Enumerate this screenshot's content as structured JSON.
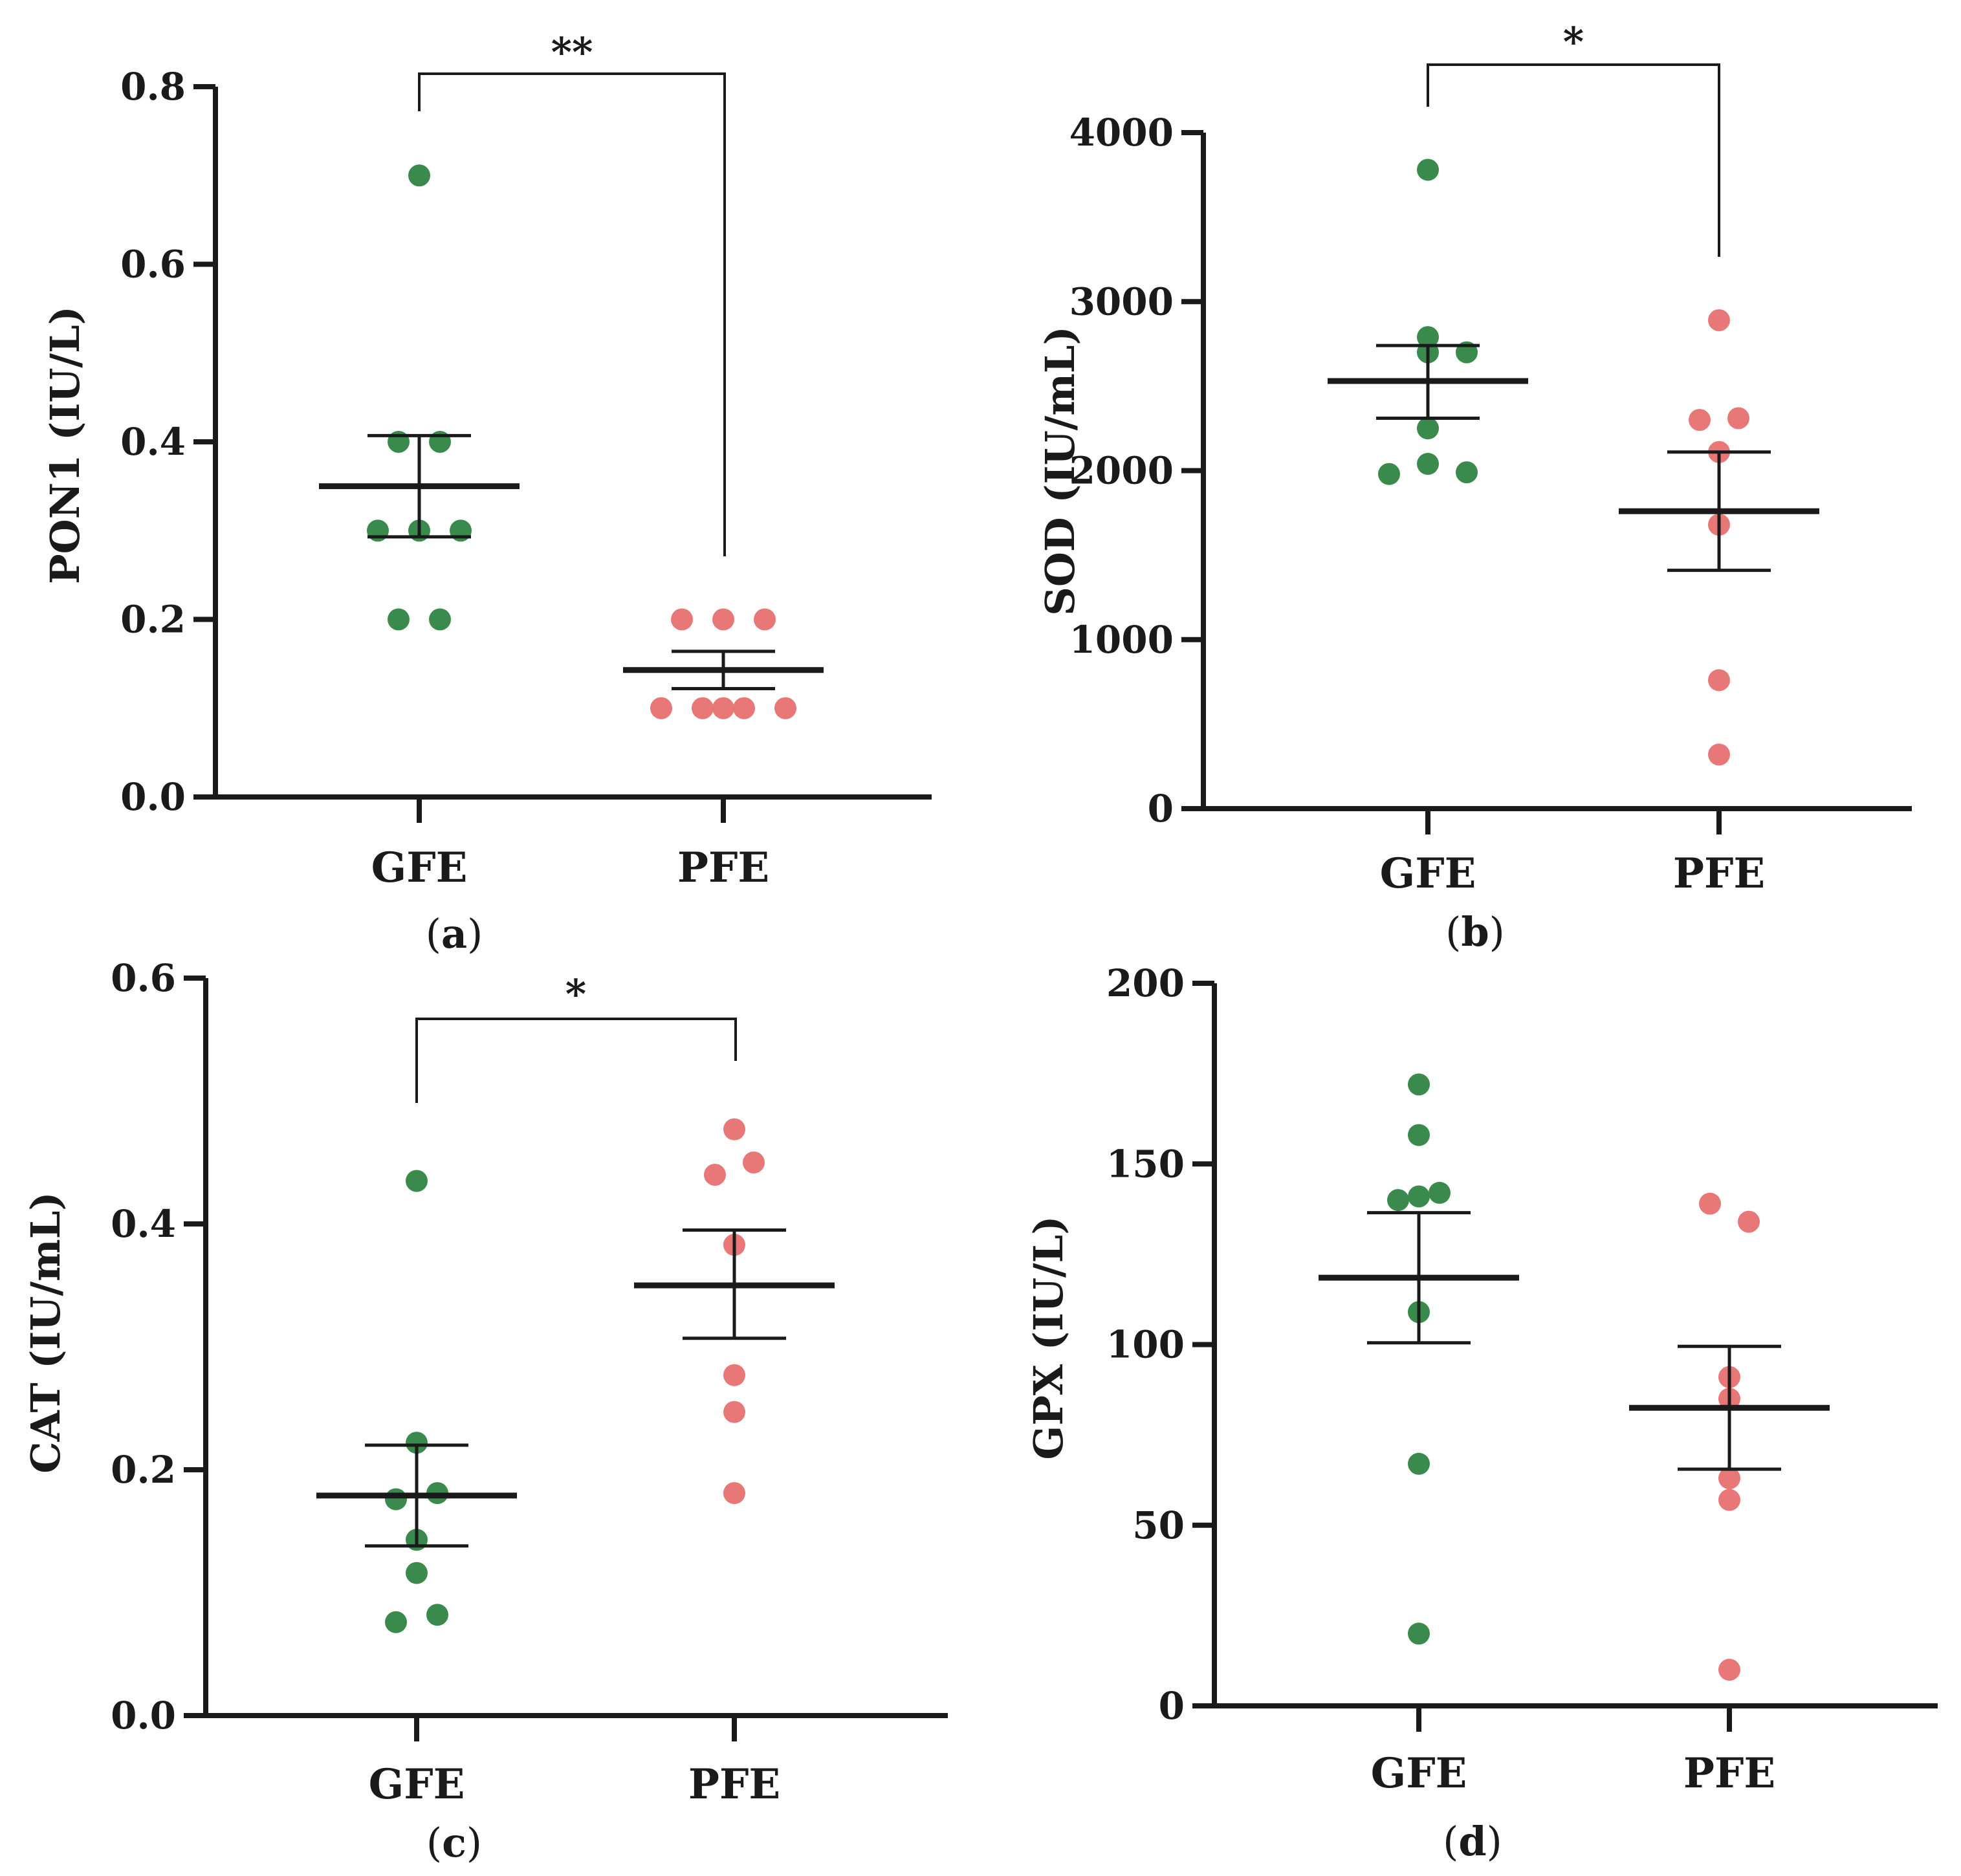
{
  "colors": {
    "GFE": "#3b8a4d",
    "PFE": "#e87878",
    "axis": "#1a1a1a"
  },
  "chart_data": [
    {
      "type": "scatter",
      "panel_label": "a",
      "ylabel": "PON1 (IU/L)",
      "ylim": [
        0,
        0.8
      ],
      "yticks": [
        "0.0",
        "0.2",
        "0.4",
        "0.6",
        "0.8"
      ],
      "categories": [
        "GFE",
        "PFE"
      ],
      "series": [
        {
          "name": "GFE",
          "values": [
            0.7,
            0.4,
            0.4,
            0.3,
            0.3,
            0.3,
            0.2,
            0.2
          ],
          "mean": 0.35,
          "sem_low": 0.293,
          "sem_high": 0.407
        },
        {
          "name": "PFE",
          "values": [
            0.2,
            0.2,
            0.2,
            0.1,
            0.1,
            0.1,
            0.1,
            0.1
          ],
          "mean": 0.143,
          "sem_low": 0.122,
          "sem_high": 0.164
        }
      ],
      "significance": {
        "label": "**",
        "between": [
          "GFE",
          "PFE"
        ]
      }
    },
    {
      "type": "scatter",
      "panel_label": "b",
      "ylabel": "SOD (IU/mL)",
      "ylim": [
        0,
        4000
      ],
      "yticks": [
        "0",
        "1000",
        "2000",
        "3000",
        "4000"
      ],
      "categories": [
        "GFE",
        "PFE"
      ],
      "series": [
        {
          "name": "GFE",
          "values": [
            3780,
            2790,
            2700,
            2700,
            2250,
            2040,
            1980,
            1990
          ],
          "mean": 2530,
          "sem_low": 2310,
          "sem_high": 2740
        },
        {
          "name": "PFE",
          "values": [
            2890,
            2300,
            2310,
            2110,
            1680,
            760,
            320
          ],
          "mean": 1760,
          "sem_low": 1410,
          "sem_high": 2110
        }
      ],
      "significance": {
        "label": "*",
        "between": [
          "GFE",
          "PFE"
        ]
      }
    },
    {
      "type": "scatter",
      "panel_label": "c",
      "ylabel": "CAT (IU/mL)",
      "ylim": [
        0,
        0.6
      ],
      "yticks": [
        "0.0",
        "0.2",
        "0.4",
        "0.6"
      ],
      "categories": [
        "GFE",
        "PFE"
      ],
      "series": [
        {
          "name": "GFE",
          "values": [
            0.435,
            0.222,
            0.181,
            0.176,
            0.143,
            0.116,
            0.082,
            0.076
          ],
          "mean": 0.179,
          "sem_low": 0.138,
          "sem_high": 0.22
        },
        {
          "name": "PFE",
          "values": [
            0.477,
            0.45,
            0.44,
            0.383,
            0.277,
            0.247,
            0.181
          ],
          "mean": 0.35,
          "sem_low": 0.307,
          "sem_high": 0.395
        }
      ],
      "significance": {
        "label": "*",
        "between": [
          "GFE",
          "PFE"
        ]
      }
    },
    {
      "type": "scatter",
      "panel_label": "d",
      "ylabel": "GPX (IU/L)",
      "ylim": [
        0,
        200
      ],
      "yticks": [
        "0",
        "50",
        "100",
        "150",
        "200"
      ],
      "categories": [
        "GFE",
        "PFE"
      ],
      "series": [
        {
          "name": "GFE",
          "values": [
            172,
            158,
            141,
            140,
            142,
            109,
            67,
            20
          ],
          "mean": 118.5,
          "sem_low": 100.5,
          "sem_high": 136.5
        },
        {
          "name": "PFE",
          "values": [
            139,
            134,
            91,
            85,
            63,
            57,
            10
          ],
          "mean": 82.5,
          "sem_low": 65.5,
          "sem_high": 99.5
        }
      ],
      "significance": null
    }
  ]
}
